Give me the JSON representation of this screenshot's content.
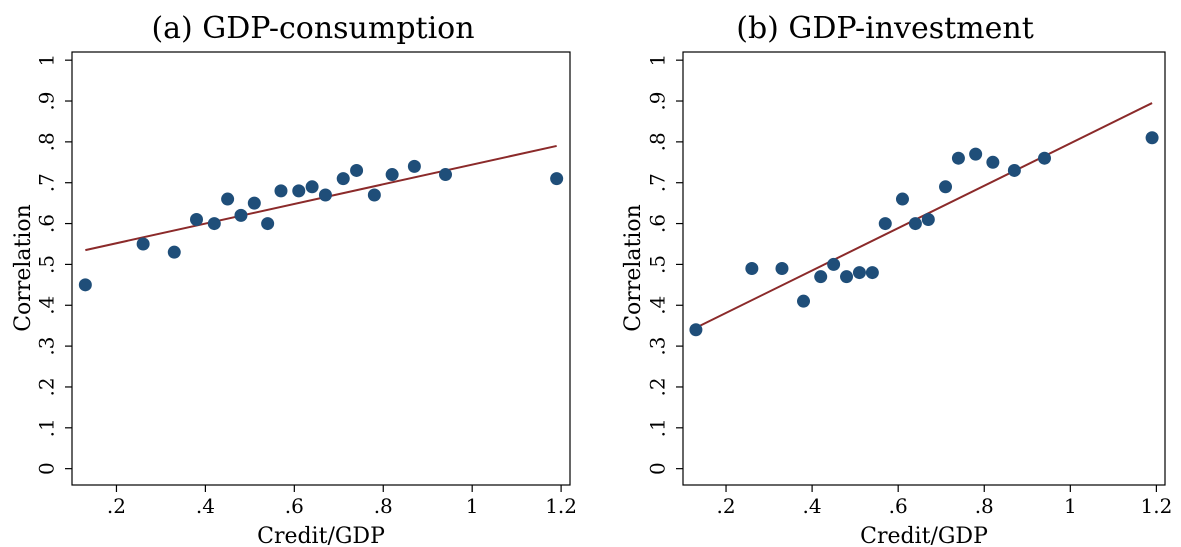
{
  "chart_data": [
    {
      "type": "scatter",
      "title": "(a) GDP-consumption",
      "xlabel": "Credit/GDP",
      "ylabel": "Correlation",
      "xlim": [
        0.1,
        1.22
      ],
      "ylim": [
        -0.04,
        1.02
      ],
      "x_ticks": [
        0.2,
        0.4,
        0.6,
        0.8,
        1.0,
        1.2
      ],
      "x_tick_labels": [
        ".2",
        ".4",
        ".6",
        ".8",
        "1",
        "1.2"
      ],
      "y_ticks": [
        0.0,
        0.1,
        0.2,
        0.3,
        0.4,
        0.5,
        0.6,
        0.7,
        0.8,
        0.9,
        1.0
      ],
      "y_tick_labels": [
        "0",
        ".1",
        ".2",
        ".3",
        ".4",
        ".5",
        ".6",
        ".7",
        ".8",
        ".9",
        "1"
      ],
      "grid": false,
      "legend": "none",
      "colors": {
        "points": "#1f4e79",
        "fit_line": "#8b2a2a"
      },
      "points": [
        {
          "x": 0.13,
          "y": 0.45
        },
        {
          "x": 0.26,
          "y": 0.55
        },
        {
          "x": 0.33,
          "y": 0.53
        },
        {
          "x": 0.38,
          "y": 0.61
        },
        {
          "x": 0.42,
          "y": 0.6
        },
        {
          "x": 0.45,
          "y": 0.66
        },
        {
          "x": 0.48,
          "y": 0.62
        },
        {
          "x": 0.51,
          "y": 0.65
        },
        {
          "x": 0.54,
          "y": 0.6
        },
        {
          "x": 0.57,
          "y": 0.68
        },
        {
          "x": 0.61,
          "y": 0.68
        },
        {
          "x": 0.64,
          "y": 0.69
        },
        {
          "x": 0.67,
          "y": 0.67
        },
        {
          "x": 0.71,
          "y": 0.71
        },
        {
          "x": 0.74,
          "y": 0.73
        },
        {
          "x": 0.78,
          "y": 0.67
        },
        {
          "x": 0.82,
          "y": 0.72
        },
        {
          "x": 0.87,
          "y": 0.74
        },
        {
          "x": 0.94,
          "y": 0.72
        },
        {
          "x": 1.19,
          "y": 0.71
        }
      ],
      "fit_line": {
        "x": [
          0.13,
          1.19
        ],
        "y": [
          0.535,
          0.79
        ]
      }
    },
    {
      "type": "scatter",
      "title": "(b) GDP-investment",
      "xlabel": "Credit/GDP",
      "ylabel": "Correlation",
      "xlim": [
        0.1,
        1.22
      ],
      "ylim": [
        -0.04,
        1.02
      ],
      "x_ticks": [
        0.2,
        0.4,
        0.6,
        0.8,
        1.0,
        1.2
      ],
      "x_tick_labels": [
        ".2",
        ".4",
        ".6",
        ".8",
        "1",
        "1.2"
      ],
      "y_ticks": [
        0.0,
        0.1,
        0.2,
        0.3,
        0.4,
        0.5,
        0.6,
        0.7,
        0.8,
        0.9,
        1.0
      ],
      "y_tick_labels": [
        "0",
        ".1",
        ".2",
        ".3",
        ".4",
        ".5",
        ".6",
        ".7",
        ".8",
        ".9",
        "1"
      ],
      "grid": false,
      "legend": "none",
      "colors": {
        "points": "#1f4e79",
        "fit_line": "#8b2a2a"
      },
      "points": [
        {
          "x": 0.13,
          "y": 0.34
        },
        {
          "x": 0.26,
          "y": 0.49
        },
        {
          "x": 0.33,
          "y": 0.49
        },
        {
          "x": 0.38,
          "y": 0.41
        },
        {
          "x": 0.42,
          "y": 0.47
        },
        {
          "x": 0.45,
          "y": 0.5
        },
        {
          "x": 0.48,
          "y": 0.47
        },
        {
          "x": 0.51,
          "y": 0.48
        },
        {
          "x": 0.54,
          "y": 0.48
        },
        {
          "x": 0.57,
          "y": 0.6
        },
        {
          "x": 0.61,
          "y": 0.66
        },
        {
          "x": 0.64,
          "y": 0.6
        },
        {
          "x": 0.67,
          "y": 0.61
        },
        {
          "x": 0.71,
          "y": 0.69
        },
        {
          "x": 0.74,
          "y": 0.76
        },
        {
          "x": 0.78,
          "y": 0.77
        },
        {
          "x": 0.82,
          "y": 0.75
        },
        {
          "x": 0.87,
          "y": 0.73
        },
        {
          "x": 0.94,
          "y": 0.76
        },
        {
          "x": 1.19,
          "y": 0.81
        }
      ],
      "fit_line": {
        "x": [
          0.13,
          1.19
        ],
        "y": [
          0.345,
          0.895
        ]
      }
    }
  ]
}
